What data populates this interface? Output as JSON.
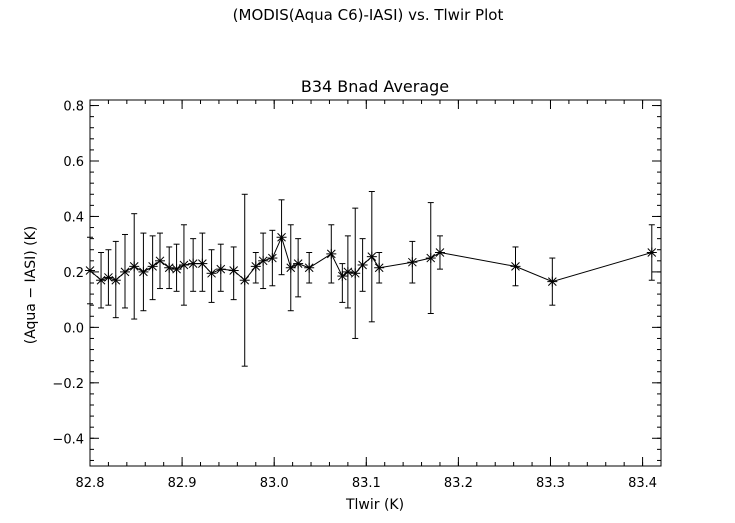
{
  "chart_data": {
    "type": "line",
    "suptitle": "(MODIS(Aqua C6)-IASI) vs. Tlwir Plot",
    "title": "B34 Bnad Average",
    "xlabel": "Tlwir (K)",
    "ylabel": "(Aqua − IASI) (K)",
    "xlim": [
      82.8,
      83.42
    ],
    "ylim": [
      -0.5,
      0.82
    ],
    "x_ticks": [
      82.8,
      82.9,
      83.0,
      83.1,
      83.2,
      83.3,
      83.4
    ],
    "x_tick_labels": [
      "82.8",
      "82.9",
      "83.0",
      "83.1",
      "83.2",
      "83.3",
      "83.4"
    ],
    "y_ticks": [
      -0.4,
      -0.2,
      0.0,
      0.2,
      0.4,
      0.6,
      0.8
    ],
    "y_tick_labels": [
      "−0.4",
      "−0.2",
      "0.0",
      "0.2",
      "0.4",
      "0.6",
      "0.8"
    ],
    "grid": false,
    "marker": "asterisk",
    "points": [
      {
        "x": 82.8,
        "y": 0.205,
        "lo": 0.085,
        "hi": 0.325
      },
      {
        "x": 82.812,
        "y": 0.17,
        "lo": 0.07,
        "hi": 0.27
      },
      {
        "x": 82.82,
        "y": 0.18,
        "lo": 0.08,
        "hi": 0.28
      },
      {
        "x": 82.828,
        "y": 0.17,
        "lo": 0.035,
        "hi": 0.31
      },
      {
        "x": 82.838,
        "y": 0.2,
        "lo": 0.07,
        "hi": 0.335
      },
      {
        "x": 82.848,
        "y": 0.22,
        "lo": 0.03,
        "hi": 0.41
      },
      {
        "x": 82.858,
        "y": 0.2,
        "lo": 0.06,
        "hi": 0.34
      },
      {
        "x": 82.868,
        "y": 0.22,
        "lo": 0.1,
        "hi": 0.33
      },
      {
        "x": 82.876,
        "y": 0.24,
        "lo": 0.14,
        "hi": 0.34
      },
      {
        "x": 82.886,
        "y": 0.215,
        "lo": 0.14,
        "hi": 0.29
      },
      {
        "x": 82.894,
        "y": 0.21,
        "lo": 0.13,
        "hi": 0.3
      },
      {
        "x": 82.902,
        "y": 0.225,
        "lo": 0.08,
        "hi": 0.37
      },
      {
        "x": 82.912,
        "y": 0.23,
        "lo": 0.13,
        "hi": 0.32
      },
      {
        "x": 82.922,
        "y": 0.23,
        "lo": 0.13,
        "hi": 0.34
      },
      {
        "x": 82.932,
        "y": 0.195,
        "lo": 0.09,
        "hi": 0.28
      },
      {
        "x": 82.942,
        "y": 0.21,
        "lo": 0.13,
        "hi": 0.3
      },
      {
        "x": 82.956,
        "y": 0.205,
        "lo": 0.1,
        "hi": 0.29
      },
      {
        "x": 82.968,
        "y": 0.17,
        "lo": -0.14,
        "hi": 0.48
      },
      {
        "x": 82.98,
        "y": 0.22,
        "lo": 0.16,
        "hi": 0.27
      },
      {
        "x": 82.988,
        "y": 0.24,
        "lo": 0.14,
        "hi": 0.34
      },
      {
        "x": 82.998,
        "y": 0.25,
        "lo": 0.15,
        "hi": 0.35
      },
      {
        "x": 83.008,
        "y": 0.325,
        "lo": 0.19,
        "hi": 0.46
      },
      {
        "x": 83.018,
        "y": 0.215,
        "lo": 0.06,
        "hi": 0.37
      },
      {
        "x": 83.026,
        "y": 0.23,
        "lo": 0.11,
        "hi": 0.32
      },
      {
        "x": 83.038,
        "y": 0.215,
        "lo": 0.16,
        "hi": 0.27
      },
      {
        "x": 83.062,
        "y": 0.265,
        "lo": 0.16,
        "hi": 0.37
      },
      {
        "x": 83.074,
        "y": 0.185,
        "lo": 0.09,
        "hi": 0.23
      },
      {
        "x": 83.08,
        "y": 0.2,
        "lo": 0.07,
        "hi": 0.33
      },
      {
        "x": 83.088,
        "y": 0.195,
        "lo": -0.04,
        "hi": 0.43
      },
      {
        "x": 83.096,
        "y": 0.225,
        "lo": 0.13,
        "hi": 0.32
      },
      {
        "x": 83.106,
        "y": 0.255,
        "lo": 0.02,
        "hi": 0.49
      },
      {
        "x": 83.114,
        "y": 0.215,
        "lo": 0.16,
        "hi": 0.27
      },
      {
        "x": 83.15,
        "y": 0.235,
        "lo": 0.16,
        "hi": 0.31
      },
      {
        "x": 83.17,
        "y": 0.25,
        "lo": 0.05,
        "hi": 0.45
      },
      {
        "x": 83.18,
        "y": 0.27,
        "lo": 0.21,
        "hi": 0.33
      },
      {
        "x": 83.262,
        "y": 0.22,
        "lo": 0.15,
        "hi": 0.29
      },
      {
        "x": 83.302,
        "y": 0.165,
        "lo": 0.08,
        "hi": 0.25
      },
      {
        "x": 83.41,
        "y": 0.27,
        "lo": 0.17,
        "hi": 0.37
      }
    ]
  }
}
